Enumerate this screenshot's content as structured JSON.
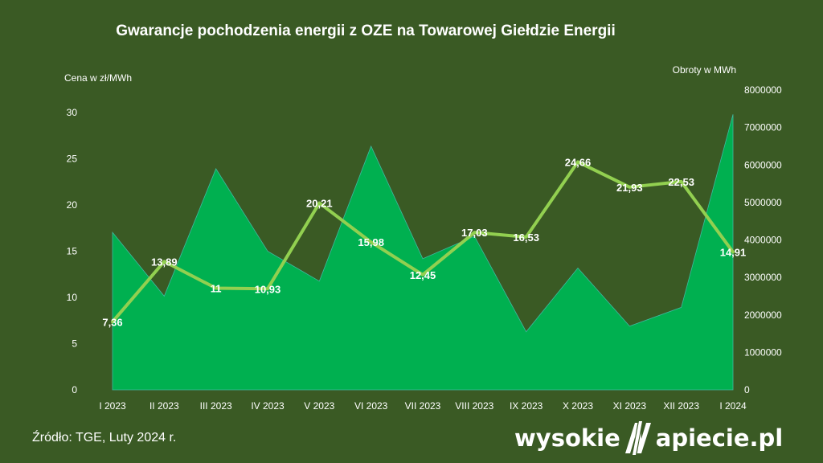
{
  "chart_data": {
    "type": "area+line",
    "title": "Gwarancje pochodzenia energii z OZE na Towarowej Giełdzie Energii",
    "ylabel": "Cena w zł/MWh",
    "ylabel_right": "Obroty w MWh",
    "ylim": [
      0,
      30
    ],
    "ylim_right": [
      0,
      8000000
    ],
    "yticks": [
      "0",
      "5",
      "10",
      "15",
      "20",
      "25",
      "30"
    ],
    "yticks_right": [
      "0",
      "1000000",
      "2000000",
      "3000000",
      "4000000",
      "5000000",
      "6000000",
      "7000000",
      "8000000"
    ],
    "categories": [
      "I 2023",
      "II 2023",
      "III 2023",
      "IV 2023",
      "V 2023",
      "VI 2023",
      "VII 2023",
      "VIII 2023",
      "IX 2023",
      "X 2023",
      "XI 2023",
      "XII 2023",
      "I 2024"
    ],
    "series": [
      {
        "name": "Obroty w MWh",
        "axis": "right",
        "type": "area",
        "color": "#00b050",
        "values": [
          4200000,
          2500000,
          5900000,
          3700000,
          2900000,
          6500000,
          3500000,
          4100000,
          1550000,
          3250000,
          1700000,
          2200000,
          7350000
        ]
      },
      {
        "name": "Cena w zł/MWh",
        "axis": "left",
        "type": "line",
        "color": "#92d050",
        "values": [
          7.36,
          13.89,
          11,
          10.93,
          20.21,
          15.98,
          12.45,
          17.03,
          16.53,
          24.66,
          21.93,
          22.53,
          14.91
        ],
        "labels": [
          "7,36",
          "13,89",
          "11",
          "10,93",
          "20,21",
          "15,98",
          "12,45",
          "17,03",
          "16,53",
          "24,66",
          "21,93",
          "22,53",
          "14,91"
        ]
      }
    ],
    "grid": false
  },
  "source": "Źródło: TGE, Luty 2024 r.",
  "brand": {
    "left": "wysokie",
    "right": "apiecie.pl"
  },
  "colors": {
    "background": "#3a5a24",
    "area": "#00b050",
    "line": "#92d050",
    "text": "#ffffff"
  }
}
